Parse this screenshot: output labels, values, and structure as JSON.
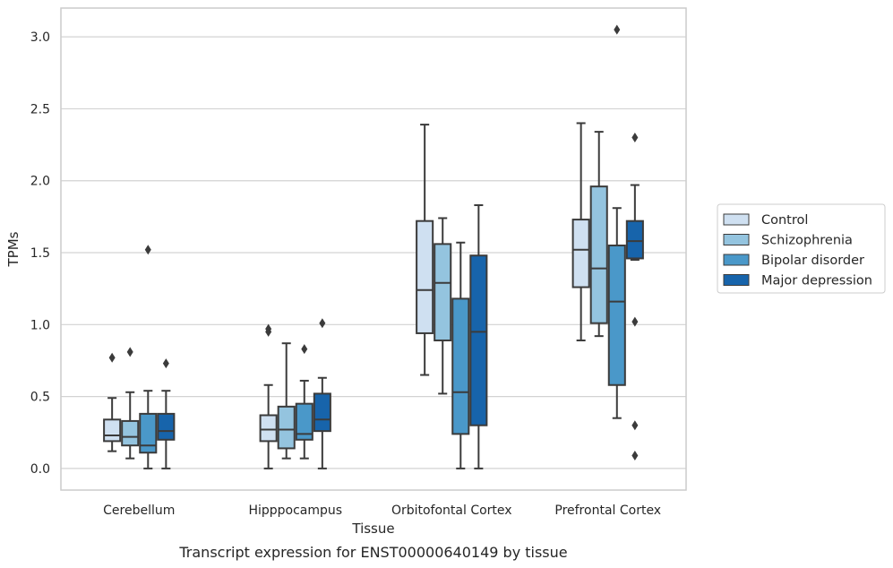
{
  "chart_data": {
    "type": "box",
    "xlabel": "Tissue",
    "ylabel": "TPMs",
    "caption": "Transcript expression for ENST00000640149 by tissue",
    "ylim": [
      -0.15,
      3.2
    ],
    "yticks": [
      "0.0",
      "0.5",
      "1.0",
      "1.5",
      "2.0",
      "2.5",
      "3.0"
    ],
    "grid": "horizontal",
    "legend_position": "right",
    "categories": [
      "Cerebellum",
      "Hipppocampus",
      "Orbitofontal Cortex",
      "Prefrontal Cortex"
    ],
    "series": [
      {
        "name": "Control",
        "color": "#cfe0f1",
        "boxes": [
          {
            "whislo": 0.12,
            "q1": 0.19,
            "med": 0.23,
            "q3": 0.34,
            "whishi": 0.49,
            "fliers": [
              0.77
            ]
          },
          {
            "whislo": 0.0,
            "q1": 0.19,
            "med": 0.27,
            "q3": 0.37,
            "whishi": 0.58,
            "fliers": [
              0.95,
              0.97
            ]
          },
          {
            "whislo": 0.65,
            "q1": 0.94,
            "med": 1.24,
            "q3": 1.72,
            "whishi": 2.39,
            "fliers": []
          },
          {
            "whislo": 0.89,
            "q1": 1.26,
            "med": 1.52,
            "q3": 1.73,
            "whishi": 2.4,
            "fliers": []
          }
        ]
      },
      {
        "name": "Schizophrenia",
        "color": "#94c4df",
        "boxes": [
          {
            "whislo": 0.07,
            "q1": 0.16,
            "med": 0.22,
            "q3": 0.33,
            "whishi": 0.53,
            "fliers": [
              0.81
            ]
          },
          {
            "whislo": 0.07,
            "q1": 0.14,
            "med": 0.27,
            "q3": 0.43,
            "whishi": 0.87,
            "fliers": []
          },
          {
            "whislo": 0.52,
            "q1": 0.89,
            "med": 1.29,
            "q3": 1.56,
            "whishi": 1.74,
            "fliers": []
          },
          {
            "whislo": 0.92,
            "q1": 1.01,
            "med": 1.39,
            "q3": 1.96,
            "whishi": 2.34,
            "fliers": []
          }
        ]
      },
      {
        "name": "Bipolar disorder",
        "color": "#4a98c9",
        "boxes": [
          {
            "whislo": 0.0,
            "q1": 0.11,
            "med": 0.16,
            "q3": 0.38,
            "whishi": 0.54,
            "fliers": [
              1.52
            ]
          },
          {
            "whislo": 0.07,
            "q1": 0.2,
            "med": 0.24,
            "q3": 0.45,
            "whishi": 0.61,
            "fliers": [
              0.83
            ]
          },
          {
            "whislo": 0.0,
            "q1": 0.24,
            "med": 0.53,
            "q3": 1.18,
            "whishi": 1.57,
            "fliers": []
          },
          {
            "whislo": 0.35,
            "q1": 0.58,
            "med": 1.16,
            "q3": 1.55,
            "whishi": 1.81,
            "fliers": [
              3.05
            ]
          }
        ]
      },
      {
        "name": "Major depression",
        "color": "#1764ab",
        "boxes": [
          {
            "whislo": 0.0,
            "q1": 0.2,
            "med": 0.26,
            "q3": 0.38,
            "whishi": 0.54,
            "fliers": [
              0.73
            ]
          },
          {
            "whislo": 0.0,
            "q1": 0.26,
            "med": 0.34,
            "q3": 0.52,
            "whishi": 0.63,
            "fliers": [
              1.01
            ]
          },
          {
            "whislo": 0.0,
            "q1": 0.3,
            "med": 0.95,
            "q3": 1.48,
            "whishi": 1.83,
            "fliers": []
          },
          {
            "whislo": 1.45,
            "q1": 1.46,
            "med": 1.58,
            "q3": 1.72,
            "whishi": 1.97,
            "fliers": [
              2.3,
              1.02,
              0.3,
              0.09
            ]
          }
        ]
      }
    ]
  }
}
